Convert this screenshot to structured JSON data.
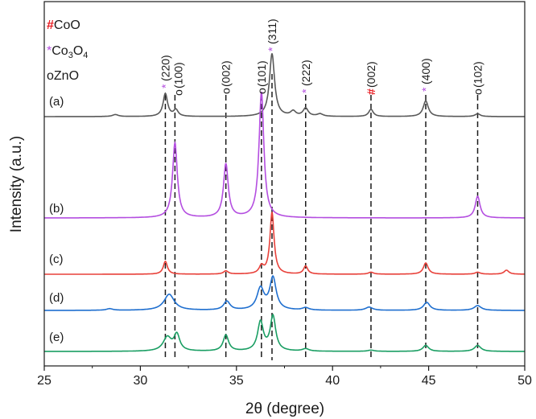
{
  "chart_data": {
    "type": "line",
    "xlabel": "2θ (degree)",
    "ylabel": "Intensity (a.u.)",
    "xlim": [
      25,
      50
    ],
    "xticks": [
      25,
      30,
      35,
      40,
      45,
      50
    ],
    "yticks_shown": false,
    "legend": {
      "placement": "top-left",
      "entries": [
        {
          "marker": "#",
          "text": "CoO",
          "marker_color": "#e8191f"
        },
        {
          "marker": "*",
          "text": "Co",
          "sub": "3",
          "text2": "O",
          "sub2": "4",
          "marker_color": "#b44ee0"
        },
        {
          "marker": "ο",
          "text": "ZnO",
          "marker_color": "#1a1a1a"
        }
      ]
    },
    "reference_lines": [
      {
        "x": 31.3,
        "label": "(220)",
        "marker": "*",
        "phase": "Co3O4"
      },
      {
        "x": 31.8,
        "label": "(100)",
        "marker": "ο",
        "phase": "ZnO"
      },
      {
        "x": 34.45,
        "label": "(002)",
        "marker": "ο",
        "phase": "ZnO"
      },
      {
        "x": 36.3,
        "label": "(101)",
        "marker": "ο",
        "phase": "ZnO"
      },
      {
        "x": 36.85,
        "label": "(311)",
        "marker": "*",
        "phase": "Co3O4"
      },
      {
        "x": 38.6,
        "label": "(222)",
        "marker": "*",
        "phase": "Co3O4"
      },
      {
        "x": 42.0,
        "label": "(002)",
        "marker": "#",
        "phase": "CoO"
      },
      {
        "x": 44.85,
        "label": "(400)",
        "marker": "*",
        "phase": "Co3O4"
      },
      {
        "x": 47.55,
        "label": "(102)",
        "marker": "ο",
        "phase": "ZnO"
      }
    ],
    "series": [
      {
        "name": "(a)",
        "color": "#595959",
        "baseline": 0.0,
        "peaks": [
          [
            28.7,
            0.05,
            0.18
          ],
          [
            31.3,
            0.57,
            0.14
          ],
          [
            31.85,
            0.16,
            0.14
          ],
          [
            36.85,
            1.56,
            0.16
          ],
          [
            37.95,
            0.12,
            0.16
          ],
          [
            38.6,
            0.2,
            0.16
          ],
          [
            39.35,
            0.06,
            0.18
          ],
          [
            42.0,
            0.18,
            0.14
          ],
          [
            44.85,
            0.39,
            0.16
          ],
          [
            47.55,
            0.07,
            0.16
          ]
        ]
      },
      {
        "name": "(b)",
        "color": "#b44ee0",
        "baseline": 0.0,
        "peaks": [
          [
            31.8,
            1.86,
            0.15
          ],
          [
            34.45,
            1.33,
            0.15
          ],
          [
            36.3,
            3.13,
            0.15
          ],
          [
            47.55,
            0.54,
            0.15
          ]
        ]
      },
      {
        "name": "(c)",
        "color": "#e8413a",
        "baseline": 0.0,
        "peaks": [
          [
            31.3,
            0.32,
            0.13
          ],
          [
            34.45,
            0.08,
            0.15
          ],
          [
            36.3,
            0.18,
            0.14
          ],
          [
            36.85,
            1.53,
            0.13
          ],
          [
            38.6,
            0.2,
            0.13
          ],
          [
            42.0,
            0.05,
            0.16
          ],
          [
            44.85,
            0.28,
            0.15
          ],
          [
            47.55,
            0.05,
            0.16
          ],
          [
            49.05,
            0.1,
            0.15
          ]
        ]
      },
      {
        "name": "(d)",
        "color": "#1f6fcf",
        "baseline": 0.0,
        "peaks": [
          [
            28.4,
            0.04,
            0.2
          ],
          [
            31.5,
            0.4,
            0.32
          ],
          [
            34.5,
            0.22,
            0.2
          ],
          [
            36.25,
            0.53,
            0.22
          ],
          [
            36.9,
            0.8,
            0.2
          ],
          [
            38.6,
            0.06,
            0.2
          ],
          [
            41.9,
            0.08,
            0.22
          ],
          [
            44.9,
            0.2,
            0.2
          ],
          [
            47.55,
            0.12,
            0.22
          ]
        ]
      },
      {
        "name": "(e)",
        "color": "#1a9e63",
        "baseline": 0.0,
        "peaks": [
          [
            31.4,
            0.34,
            0.26
          ],
          [
            31.9,
            0.4,
            0.18
          ],
          [
            34.45,
            0.4,
            0.17
          ],
          [
            36.25,
            0.72,
            0.18
          ],
          [
            36.9,
            0.86,
            0.17
          ],
          [
            38.6,
            0.06,
            0.2
          ],
          [
            42.0,
            0.03,
            0.2
          ],
          [
            44.85,
            0.15,
            0.18
          ],
          [
            47.55,
            0.15,
            0.2
          ]
        ]
      }
    ]
  }
}
